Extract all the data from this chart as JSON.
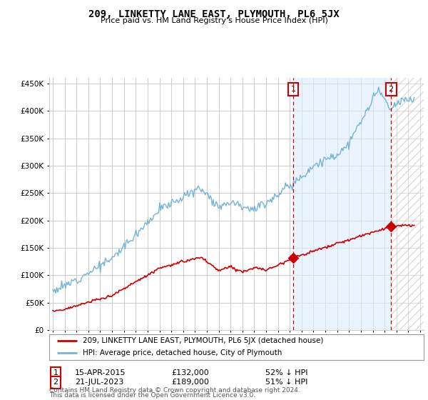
{
  "title": "209, LINKETTY LANE EAST, PLYMOUTH, PL6 5JX",
  "subtitle": "Price paid vs. HM Land Registry's House Price Index (HPI)",
  "background_color": "#ffffff",
  "plot_background": "#ffffff",
  "grid_color": "#cccccc",
  "hpi_color": "#74b3d8",
  "price_color": "#cc0000",
  "marker1_date": "15-APR-2015",
  "marker1_price": "£132,000",
  "marker1_pct": "52% ↓ HPI",
  "marker2_date": "21-JUL-2023",
  "marker2_price": "£189,000",
  "marker2_pct": "51% ↓ HPI",
  "legend_line1": "209, LINKETTY LANE EAST, PLYMOUTH, PL6 5JX (detached house)",
  "legend_line2": "HPI: Average price, detached house, City of Plymouth",
  "footer1": "Contains HM Land Registry data © Crown copyright and database right 2024.",
  "footer2": "This data is licensed under the Open Government Licence v3.0.",
  "ylim": [
    0,
    460000
  ],
  "yticks": [
    0,
    50000,
    100000,
    150000,
    200000,
    250000,
    300000,
    350000,
    400000,
    450000
  ],
  "shade_color": "#ddeeff",
  "hatch_color": "#cccccc",
  "marker1_x": 2015.29,
  "marker1_y": 132000,
  "marker2_x": 2023.54,
  "marker2_y": 189000,
  "hatch_start": 2023.54,
  "xmin": 1994.7,
  "xmax": 2026.3
}
